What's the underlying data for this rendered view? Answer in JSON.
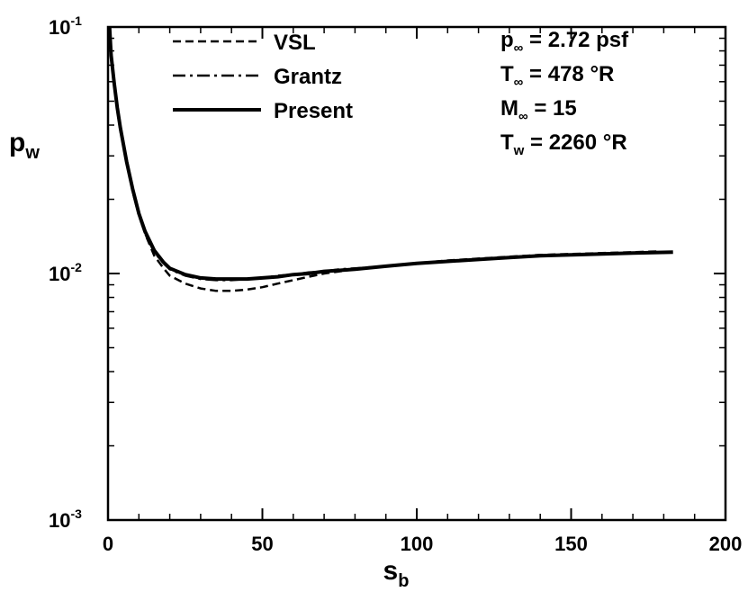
{
  "chart_data": {
    "type": "line",
    "xlabel": "s",
    "xlabel_sub": "b",
    "ylabel": "p",
    "ylabel_sub": "w",
    "xlim": [
      0,
      200
    ],
    "ylim": [
      0.001,
      0.1
    ],
    "yscale": "log",
    "x_ticks": [
      0,
      50,
      100,
      150,
      200
    ],
    "x_tick_labels": [
      "0",
      "50",
      "100",
      "150",
      "200"
    ],
    "y_ticks": [
      0.001,
      0.01,
      0.1
    ],
    "y_tick_labels": [
      {
        "base": "10",
        "exp": "-3"
      },
      {
        "base": "10",
        "exp": "-2"
      },
      {
        "base": "10",
        "exp": "-1"
      }
    ],
    "grid": false,
    "legend_position": "top-left",
    "annotations": [
      {
        "main": "p",
        "sub": "∞",
        "rest": " = 2.72 psf"
      },
      {
        "main": "T",
        "sub": "∞",
        "rest": " = 478 °R"
      },
      {
        "main": "M",
        "sub": "∞",
        "rest": " = 15"
      },
      {
        "main": "T",
        "sub": "w",
        "rest": " = 2260 °R"
      }
    ],
    "series": [
      {
        "name": "VSL",
        "style": "dashed",
        "x": [
          0.5,
          1,
          2,
          3,
          4,
          6,
          8,
          10,
          12,
          15,
          18,
          20,
          25,
          30,
          35,
          40,
          45,
          50,
          55,
          60,
          65,
          70,
          75,
          80,
          90,
          100,
          110,
          120,
          130,
          140,
          150,
          160,
          170,
          178
        ],
        "y": [
          0.1,
          0.078,
          0.06,
          0.048,
          0.04,
          0.029,
          0.022,
          0.0175,
          0.0145,
          0.0118,
          0.0105,
          0.0098,
          0.0091,
          0.0087,
          0.0085,
          0.0085,
          0.0086,
          0.0088,
          0.0091,
          0.0094,
          0.0097,
          0.01,
          0.0102,
          0.0104,
          0.0107,
          0.011,
          0.0113,
          0.0115,
          0.0117,
          0.0119,
          0.012,
          0.0121,
          0.0122,
          0.0123
        ]
      },
      {
        "name": "Grantz",
        "style": "dash-dot",
        "x": [
          0.5,
          1,
          2,
          3,
          4,
          6,
          8,
          10,
          12,
          15,
          18,
          20,
          25,
          30,
          35,
          40,
          45,
          50,
          55,
          60,
          65,
          70,
          75,
          80,
          90,
          100,
          110,
          120,
          130,
          140,
          150,
          160,
          170,
          177
        ],
        "y": [
          0.1,
          0.076,
          0.058,
          0.046,
          0.038,
          0.028,
          0.0215,
          0.0172,
          0.0145,
          0.0122,
          0.011,
          0.0104,
          0.0098,
          0.0095,
          0.0094,
          0.0094,
          0.0095,
          0.0096,
          0.0098,
          0.0099,
          0.0101,
          0.0102,
          0.0104,
          0.0105,
          0.0107,
          0.011,
          0.0112,
          0.0114,
          0.0116,
          0.0118,
          0.0119,
          0.012,
          0.0121,
          0.0122
        ]
      },
      {
        "name": "Present",
        "style": "solid",
        "x": [
          0.5,
          1,
          2,
          3,
          4,
          6,
          8,
          10,
          12,
          15,
          18,
          20,
          25,
          30,
          35,
          40,
          45,
          50,
          55,
          60,
          65,
          70,
          75,
          80,
          90,
          100,
          110,
          120,
          130,
          140,
          150,
          160,
          170,
          183
        ],
        "y": [
          0.1,
          0.077,
          0.059,
          0.047,
          0.039,
          0.0285,
          0.022,
          0.0175,
          0.0148,
          0.0124,
          0.0111,
          0.0105,
          0.0099,
          0.0096,
          0.0095,
          0.0095,
          0.0095,
          0.0096,
          0.0097,
          0.0099,
          0.01,
          0.0102,
          0.0103,
          0.0104,
          0.0107,
          0.011,
          0.0112,
          0.0114,
          0.0116,
          0.0118,
          0.0119,
          0.012,
          0.0121,
          0.0122
        ]
      }
    ]
  }
}
